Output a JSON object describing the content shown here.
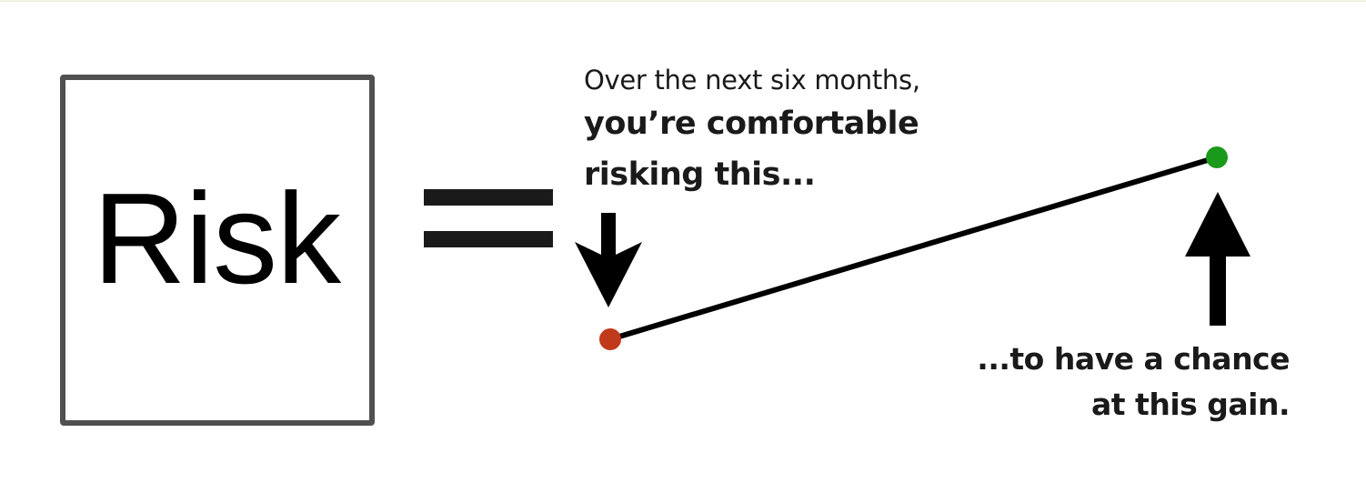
{
  "risk_box": {
    "label": "Risk",
    "border_color": "#505050"
  },
  "equals_sign": {
    "symbol": "=",
    "color": "#1a1a1a"
  },
  "start_caption": {
    "line1": "Over the next six months,",
    "line2": "you’re comfortable",
    "line3": "risking this..."
  },
  "end_caption": {
    "line1": "...to have a chance",
    "line2": "at this gain."
  },
  "markers": {
    "risk_point_color": "#c0391b",
    "gain_point_color": "#1a9a1a",
    "line_color": "#000000",
    "arrow_color": "#000000"
  }
}
